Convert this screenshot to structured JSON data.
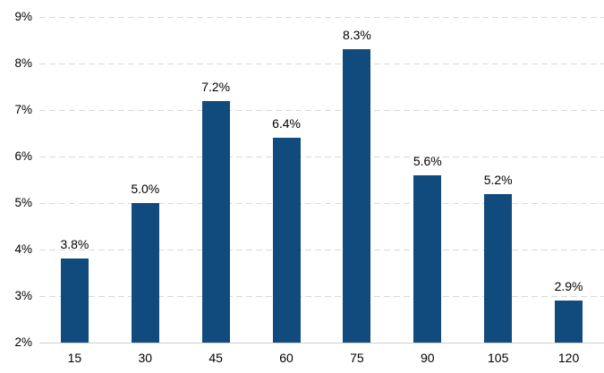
{
  "chart_data": {
    "type": "bar",
    "title": "",
    "xlabel": "",
    "ylabel": "",
    "categories": [
      "15",
      "30",
      "45",
      "60",
      "75",
      "90",
      "105",
      "120"
    ],
    "values": [
      3.8,
      5.0,
      7.2,
      6.4,
      8.3,
      5.6,
      5.2,
      2.9
    ],
    "value_labels": [
      "3.8%",
      "5.0%",
      "7.2%",
      "6.4%",
      "8.3%",
      "5.6%",
      "5.2%",
      "2.9%"
    ],
    "ylim": [
      2,
      9
    ],
    "y_ticks": [
      {
        "value": 9,
        "label": "9%"
      },
      {
        "value": 8,
        "label": "8%"
      },
      {
        "value": 7,
        "label": "7%"
      },
      {
        "value": 6,
        "label": "6%"
      },
      {
        "value": 5,
        "label": "5%"
      },
      {
        "value": 4,
        "label": "4%"
      },
      {
        "value": 3,
        "label": "3%"
      },
      {
        "value": 2,
        "label": "2%"
      }
    ],
    "grid": "horizontal-dashed",
    "legend_position": "none",
    "colors": {
      "bar": "#114B7D",
      "gridline": "#D9D9D9",
      "axis_line": "#CFCFCF",
      "text": "#000000",
      "background": "#FFFFFF"
    }
  }
}
